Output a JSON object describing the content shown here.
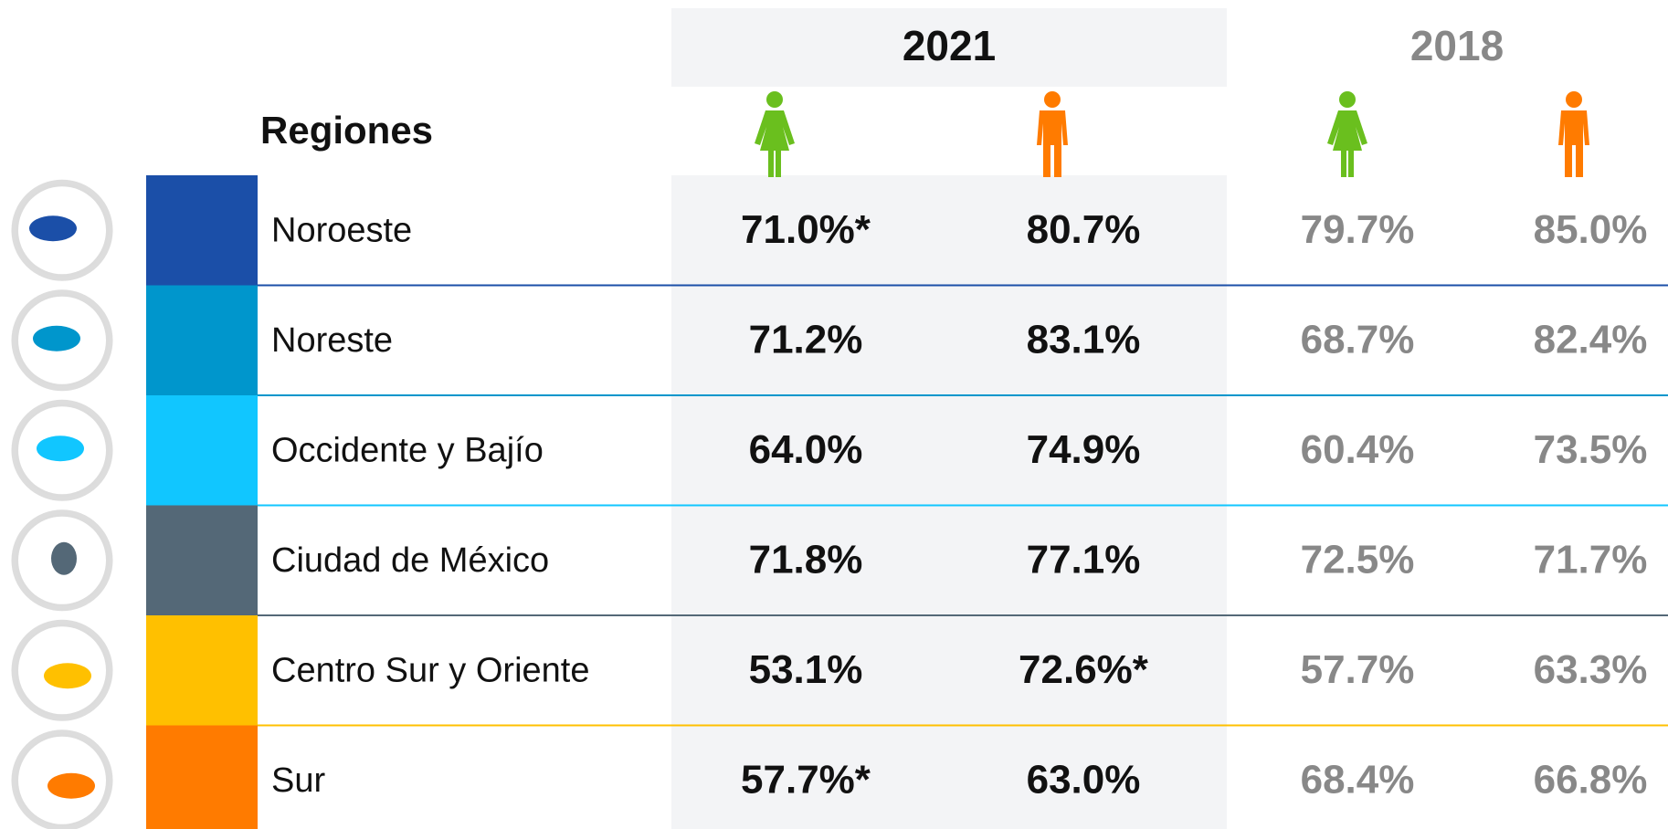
{
  "header": {
    "region_label": "Regiones",
    "year_current": "2021",
    "year_previous": "2018"
  },
  "table": {
    "rows": [
      {
        "region": "Noroeste",
        "color": "#1b4fa8",
        "values": [
          "71.0%*",
          "80.7%",
          "79.7%",
          "85.0%"
        ]
      },
      {
        "region": "Noreste",
        "color": "#0096cc",
        "values": [
          "71.2%",
          "83.1%",
          "68.7%",
          "82.4%"
        ]
      },
      {
        "region": "Occidente y Bajío",
        "color": "#11c6ff",
        "values": [
          "64.0%",
          "74.9%",
          "60.4%",
          "73.5%"
        ]
      },
      {
        "region": "Ciudad de México",
        "color": "#546877",
        "values": [
          "71.8%",
          "77.1%",
          "72.5%",
          "71.7%"
        ]
      },
      {
        "region": "Centro Sur y Oriente",
        "color": "#ffc000",
        "values": [
          "53.1%",
          "72.6%*",
          "57.7%",
          "63.3%"
        ]
      },
      {
        "region": "Sur",
        "color": "#ff7b00",
        "values": [
          "57.7%*",
          "63.0%",
          "68.4%",
          "66.8%"
        ]
      }
    ]
  }
}
